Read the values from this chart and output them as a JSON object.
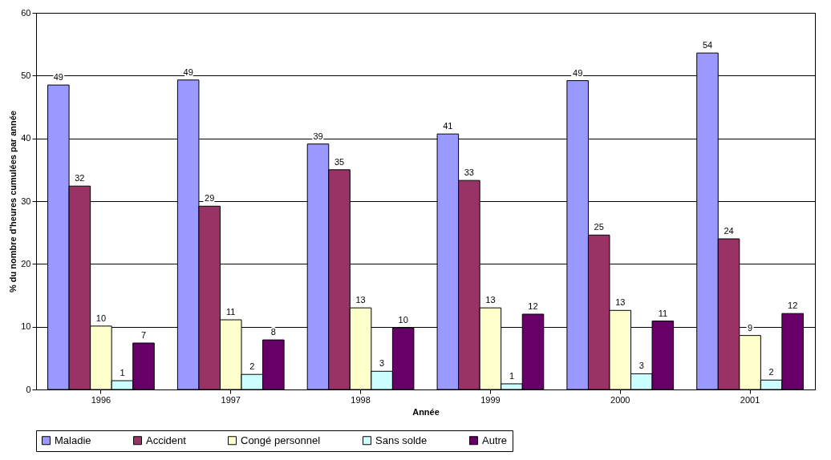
{
  "chart_data": {
    "type": "bar",
    "xlabel": "Année",
    "ylabel": "% du nombre d'heures cumulées par année",
    "categories": [
      "1996",
      "1997",
      "1998",
      "1999",
      "2000",
      "2001"
    ],
    "series": [
      {
        "name": "Maladie",
        "color": "#9999ff",
        "values": [
          48.5,
          49.3,
          39.1,
          40.7,
          49.2,
          53.6
        ],
        "value_labels": [
          "49",
          "49",
          "39",
          "41",
          "49",
          "54"
        ]
      },
      {
        "name": "Accident",
        "color": "#993366",
        "values": [
          32.4,
          29.2,
          35.0,
          33.3,
          24.6,
          24.0
        ],
        "value_labels": [
          "32",
          "29",
          "35",
          "33",
          "25",
          "24"
        ]
      },
      {
        "name": "Congé personnel",
        "color": "#ffffcc",
        "values": [
          10.1,
          11.1,
          13.0,
          13.0,
          12.6,
          8.6
        ],
        "value_labels": [
          "10",
          "11",
          "13",
          "13",
          "13",
          "9"
        ]
      },
      {
        "name": "Sans solde",
        "color": "#ccffff",
        "values": [
          1.4,
          2.4,
          2.9,
          0.9,
          2.5,
          1.5
        ],
        "value_labels": [
          "1",
          "2",
          "3",
          "1",
          "3",
          "2"
        ]
      },
      {
        "name": "Autre",
        "color": "#660066",
        "values": [
          7.4,
          7.9,
          9.8,
          12.0,
          10.9,
          12.1
        ],
        "value_labels": [
          "7",
          "8",
          "10",
          "12",
          "11",
          "12"
        ]
      }
    ],
    "ylim": [
      0,
      60
    ],
    "yticks": [
      0,
      10,
      20,
      30,
      40,
      50,
      60
    ],
    "grid": "y",
    "legend": "bottom"
  }
}
